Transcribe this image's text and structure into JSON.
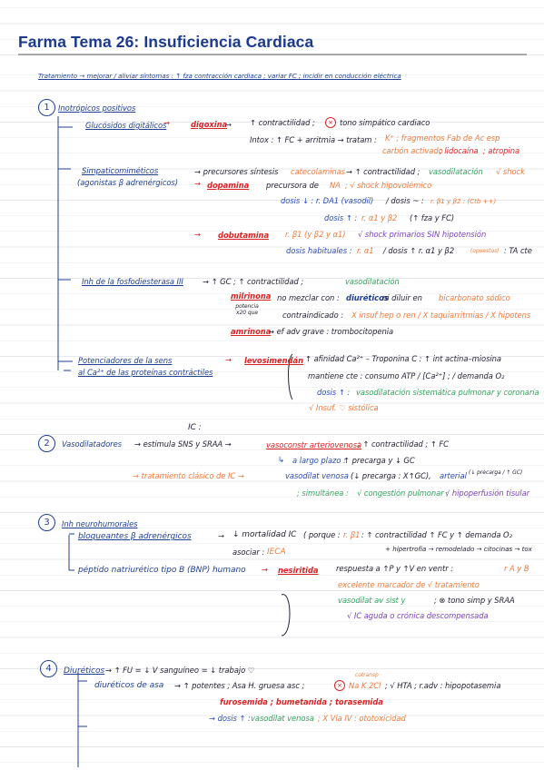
{
  "title": "Farma Tema 26: Insuficiencia Cardiaca",
  "intro": {
    "text_a": "Tratamiento → mejorar / aliviar síntomas : ↑ fza contracción cardiaca ; variar FC ; incidir en conducción eléctrica"
  },
  "s1": {
    "num": "1",
    "head": "Inotrópicos positivos",
    "glu": {
      "label": "Glucósidos digitálicos",
      "drug": "digoxina",
      "eff1": "↑ contractilidad ;",
      "eff1b": "tono simpático cardiaco",
      "intox": "Intox : ↑ FC + arritmia → tratam :",
      "k": "K⁺ ; fragmentos Fab de Ac esp",
      "line3a": "carbón activado",
      "line3b": "; lidocaína",
      "line3c": "; atropina"
    },
    "sim": {
      "label": "Simpaticomiméticos",
      "sub": "(agonistas β adrenérgicos)",
      "prec_a": "→ precursores síntesis",
      "prec_b": "catecolaminas",
      "prec_c": "→ ↑ contractilidad ;",
      "prec_d": "vasodilatación",
      "prec_e": "√ shock",
      "dopa": "dopamina",
      "dopa_a": "precursora de",
      "dopa_b": "NA",
      "dopa_c": "; √ shock hipovolémico",
      "dosis1_a": "dosis ↓ : r. DA1 (vasodil)",
      "dosis1_b": "/ dosis ~ :",
      "dosis1_c": "r. β1 y β2 : (Ctb ++)",
      "dosis2_a": "dosis ↑ :",
      "dosis2_b": "r. α1 y β2",
      "dosis2_c": "(↑ fza y FC)",
      "dobu": "dobutamina",
      "dobu_a": "r. β1 (y β2 y α1)",
      "dobu_b": "√ shock primarios SIN hipotensión",
      "dobu_c": "dosis habituales :",
      "dobu_d": "r. α1",
      "dobu_e": "/ dosis ↑ r. α1 y β2",
      "dobu_f": "(opuestos)",
      "dobu_g": ": TA cte"
    },
    "pde": {
      "label": "Inh de la fosfodiesterasa III",
      "eff_a": "→ ↑ GC ; ↑ contractilidad ;",
      "eff_b": "vasodilatación",
      "mil": "milrinona",
      "mil_sub": "potencia x20 que",
      "mil_a": "no mezclar con :",
      "mil_b": "diuréticos",
      "mil_c": "ni diluir en",
      "mil_d": "bicarbonato sódico",
      "contra_a": "contraindicado :",
      "contra_b": "X insuf hep o ren / X taquiarritmias / X hipotens",
      "amri": "amrinona",
      "amri_a": "→ ef adv grave : trombocitopenia"
    },
    "pot": {
      "label_a": "Potenciadores de la sens",
      "label_b": "al Ca²⁺ de las proteínas contráctiles",
      "levo": "levosimendán",
      "levo_a": "↑ afinidad Ca²⁺ – Troponina C : ↑ int actina–miosina",
      "levo_b": "mantiene cte : consumo ATP / [Ca²⁺] ; / demanda O₂",
      "levo_c": "dosis ↑ :",
      "levo_d": "vasodilatación sistemática pulmonar y coronaria",
      "levo_e": "√ Insuf. ♡ sistólica"
    }
  },
  "s2": {
    "num": "2",
    "ic": "IC :",
    "label": "Vasodilatadores",
    "a": "→ estimula SNS y SRAA →",
    "b": "vasoconstr arteriovenosa",
    "c": "; ↑ contractilidad ; ↑ FC",
    "d_a": "a largo plazo :",
    "d_b": "↑ precarga y ↓ GC",
    "e_a": "→ tratamiento clásico de IC →",
    "e_b": "vasodilat venosa",
    "e_c": "(↓ precarga : X↑GC),",
    "e_d": "arterial",
    "e_e": "(↓ precarga / ↑ GC)",
    "f_a": "; simultánea :",
    "f_b": "√ congestión pulmonar ;",
    "f_c": "√ hipoperfusión tisular"
  },
  "s3": {
    "num": "3",
    "label": "Inh neurohumorales",
    "beta": "bloqueantes β adrenérgicos",
    "mort": "↓ mortalidad IC",
    "porque": "( porque :",
    "b1": "r. β1",
    "b1_a": ": ↑ contractilidad ↑ FC y ↑ demanda O₂",
    "hiper": "+ hipertrofia → remodelado → citocinas → tox",
    "asoc": "asociar :",
    "ieca": "IECA",
    "bnp": "péptido natriurético tipo B (BNP) humano",
    "nesi": "nesiritida",
    "resp_a": "respuesta a ↑P y ↑V en ventr :",
    "resp_b": "r A y B",
    "marc": "excelente marcador de √ tratamiento",
    "vaso_a": "vasodilat av sist y",
    "vaso_b": "; ⊗ tono simp y SRAA",
    "ic": "√ IC aguda o crónica descompensada"
  },
  "s4": {
    "num": "4",
    "label": "Diuréticos",
    "a": "→ ↑ FU = ↓ V sanguíneo = ↓ trabajo ♡",
    "asa": "diuréticos de asa",
    "asa_a": "→ ↑ potentes ; Asa H. gruesa asc ;",
    "asa_b": "Na K 2Cl",
    "asa_top": "cotransp",
    "asa_c": "; √ HTA ; r.adv : hipopotasemia",
    "furo": "furosemida ; bumetanida ; torasemida",
    "dosis_a": "→ dosis ↑ :",
    "dosis_b": "vasodilat venosa",
    "dosis_c": "; X Vía IV : ototoxicidad"
  }
}
